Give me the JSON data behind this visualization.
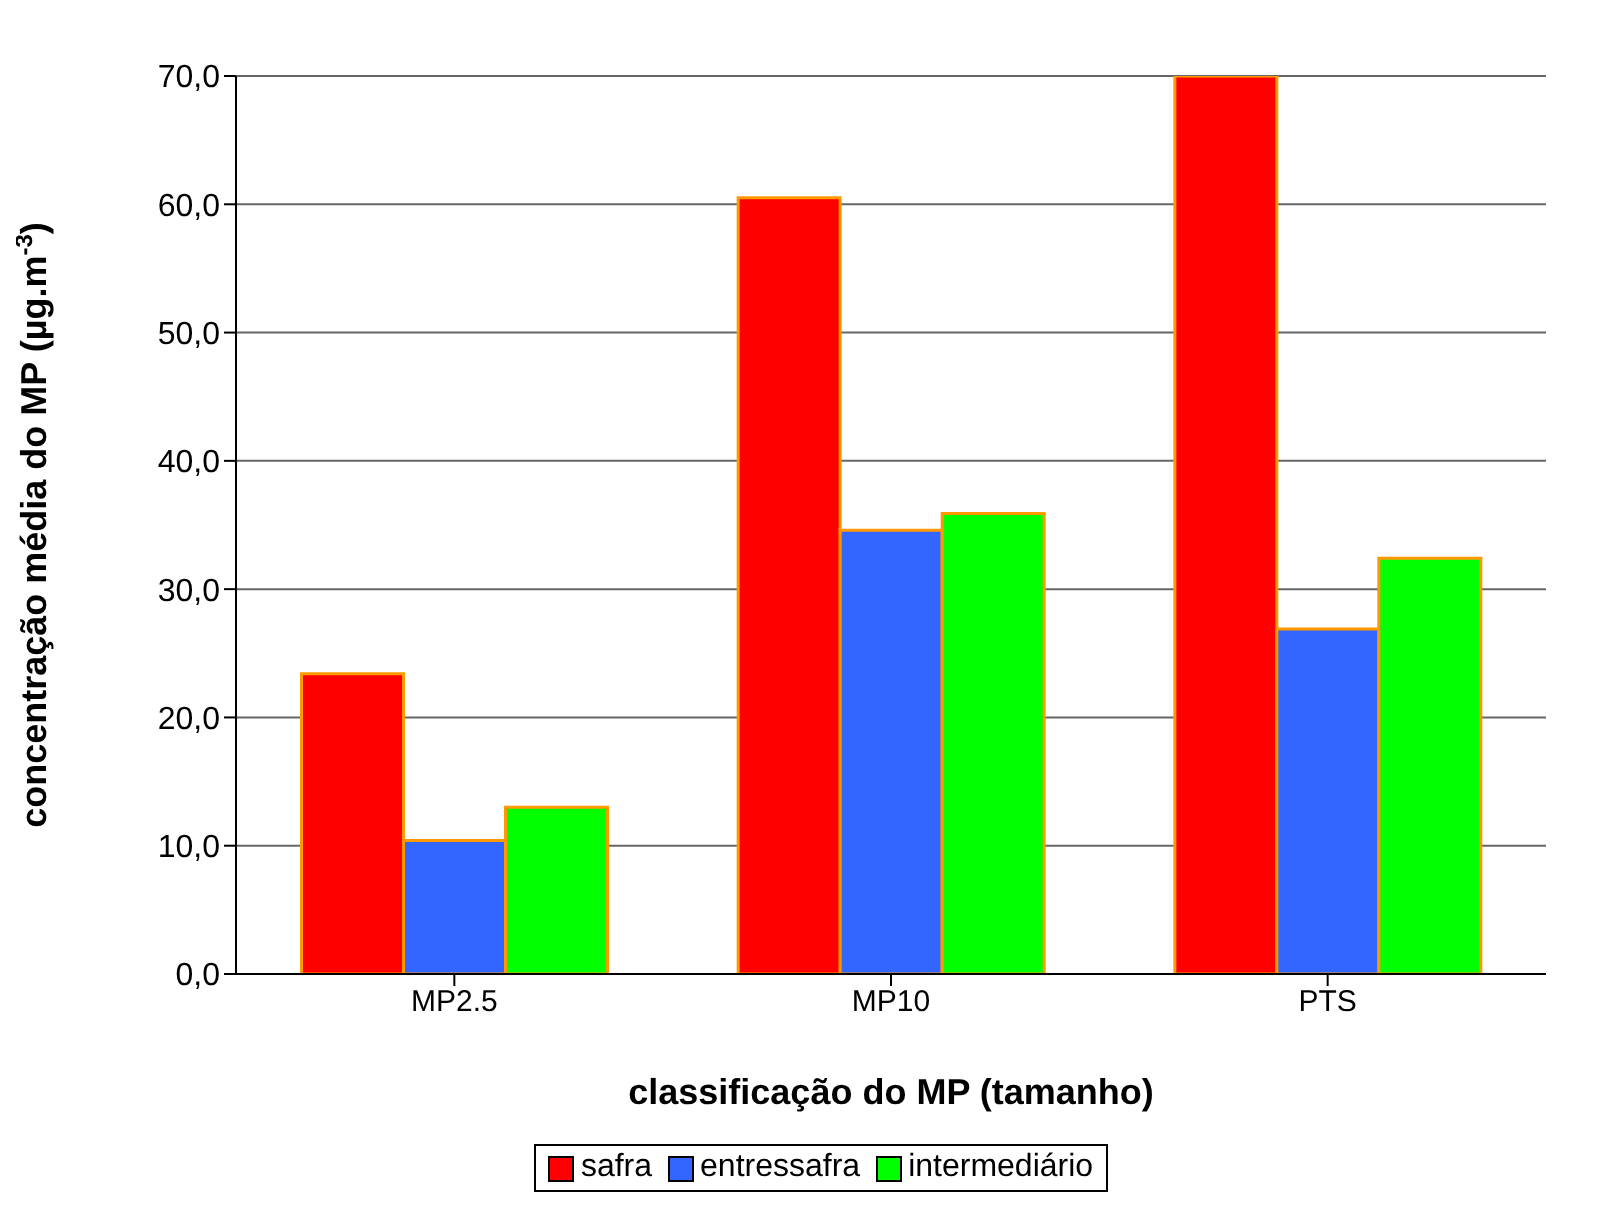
{
  "chart_data": {
    "type": "bar",
    "xlabel": "classificação do MP (tamanho)",
    "ylabel": "concentração média do MP (µg.m$^{-3}$)",
    "categories": [
      "MP2.5",
      "MP10",
      "PTS"
    ],
    "series": [
      {
        "name": "safra",
        "color": "#ff0000",
        "values": [
          23.4,
          60.5,
          70.0
        ]
      },
      {
        "name": "entressafra",
        "color": "#3366ff",
        "values": [
          10.4,
          34.6,
          26.9
        ]
      },
      {
        "name": "intermediário",
        "color": "#00ff00",
        "values": [
          13.0,
          35.9,
          32.4
        ]
      }
    ],
    "ylim": [
      0,
      70
    ],
    "yticks": [
      {
        "value": 0,
        "label": "0,0"
      },
      {
        "value": 10,
        "label": "10,0"
      },
      {
        "value": 20,
        "label": "20,0"
      },
      {
        "value": 30,
        "label": "30,0"
      },
      {
        "value": 40,
        "label": "40,0"
      },
      {
        "value": 50,
        "label": "50,0"
      },
      {
        "value": 60,
        "label": "60,0"
      },
      {
        "value": 70,
        "label": "70,0"
      }
    ],
    "grid": "y",
    "legend": "bottom"
  }
}
